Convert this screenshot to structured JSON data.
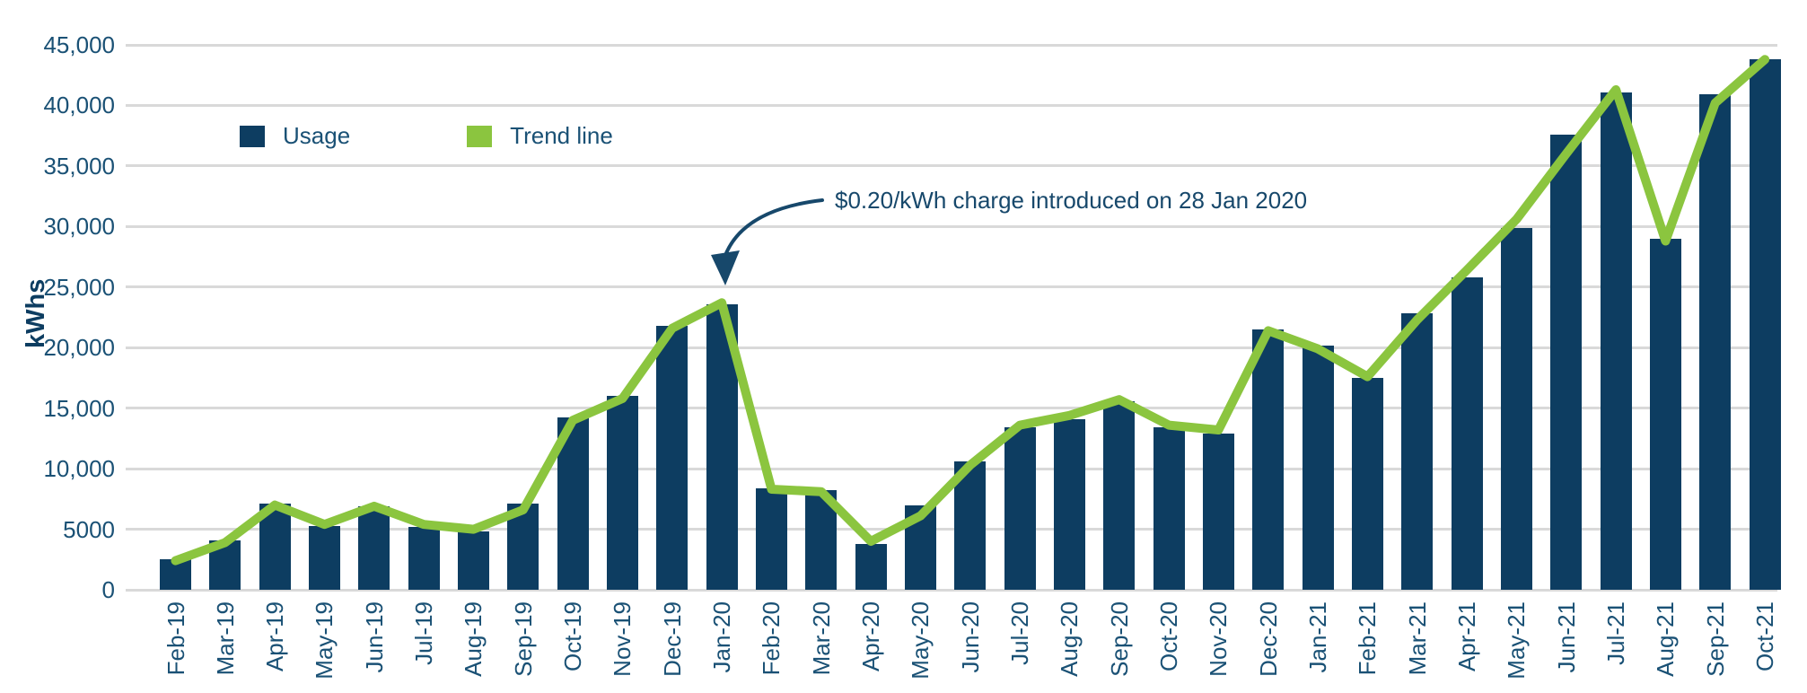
{
  "legend": {
    "usage_label": "Usage",
    "trend_label": "Trend line"
  },
  "y_axis": {
    "title": "kWhs",
    "ticks": [
      {
        "value": 45000,
        "label": "45,000"
      },
      {
        "value": 40000,
        "label": "40,000"
      },
      {
        "value": 35000,
        "label": "35,000"
      },
      {
        "value": 30000,
        "label": "30,000"
      },
      {
        "value": 25000,
        "label": "25,000"
      },
      {
        "value": 20000,
        "label": "20,000"
      },
      {
        "value": 15000,
        "label": "15,000"
      },
      {
        "value": 10000,
        "label": "10,000"
      },
      {
        "value": 5000,
        "label": "5000"
      },
      {
        "value": 0,
        "label": "0"
      }
    ]
  },
  "annotation": {
    "text": "$0.20/kWh charge introduced on 28 Jan 2020"
  },
  "colors": {
    "bar": "#0d3d61",
    "trend": "#8bc53f",
    "grid": "#d9d9d9",
    "text": "#1a5175",
    "annotation": "#17486b"
  },
  "chart_data": {
    "type": "bar",
    "title": "",
    "xlabel": "",
    "ylabel": "kWhs",
    "ylim": [
      0,
      45000
    ],
    "grid": true,
    "legend_position": "top-left",
    "categories": [
      "Feb-19",
      "Mar-19",
      "Apr-19",
      "May-19",
      "Jun-19",
      "Jul-19",
      "Aug-19",
      "Sep-19",
      "Oct-19",
      "Nov-19",
      "Dec-19",
      "Jan-20",
      "Feb-20",
      "Mar-20",
      "Apr-20",
      "May-20",
      "Jun-20",
      "Jul-20",
      "Aug-20",
      "Sep-20",
      "Oct-20",
      "Nov-20",
      "Dec-20",
      "Jan-21",
      "Feb-21",
      "Mar-21",
      "Apr-21",
      "May-21",
      "Jun-21",
      "Jul-21",
      "Aug-21",
      "Sep-21",
      "Oct-21"
    ],
    "series": [
      {
        "name": "Usage",
        "type": "bar",
        "values": [
          2500,
          4100,
          7100,
          5300,
          6900,
          5200,
          4800,
          7100,
          14200,
          16000,
          21800,
          23600,
          8400,
          8200,
          3800,
          7000,
          10600,
          13400,
          14100,
          15600,
          13400,
          12900,
          21500,
          20200,
          17500,
          22800,
          25800,
          29900,
          37600,
          41100,
          29000,
          40900,
          43800
        ]
      },
      {
        "name": "Trend line",
        "type": "line",
        "values": [
          2400,
          3900,
          7000,
          5400,
          6900,
          5400,
          5000,
          6600,
          14000,
          15800,
          21600,
          23700,
          8300,
          8100,
          4000,
          6100,
          10300,
          13600,
          14400,
          15700,
          13600,
          13200,
          21400,
          19900,
          17600,
          22300,
          26400,
          30600,
          36000,
          41300,
          28800,
          40200,
          43800
        ]
      }
    ],
    "annotation_text": "$0.20/kWh charge introduced on 28 Jan 2020",
    "annotation_target": "Jan-20"
  }
}
